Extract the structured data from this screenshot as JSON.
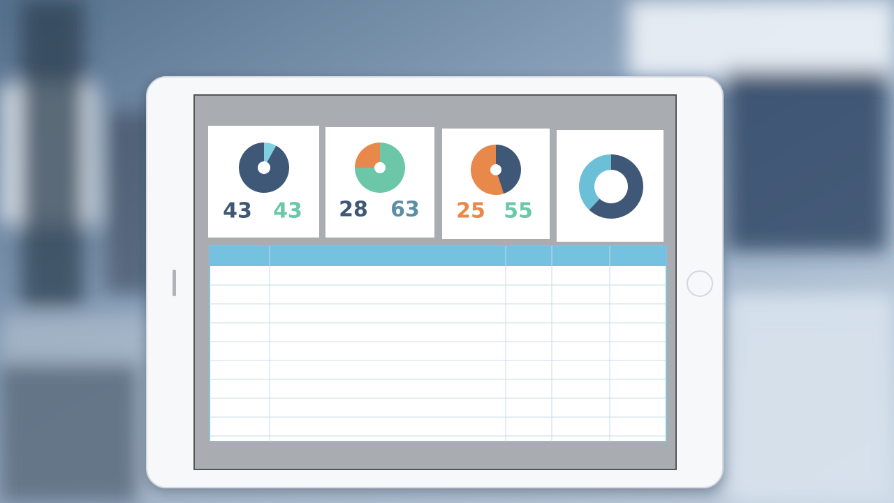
{
  "cards": [
    {
      "left": "43",
      "right": "43"
    },
    {
      "left": "28",
      "right": "63"
    },
    {
      "left": "25",
      "right": "55"
    }
  ]
}
